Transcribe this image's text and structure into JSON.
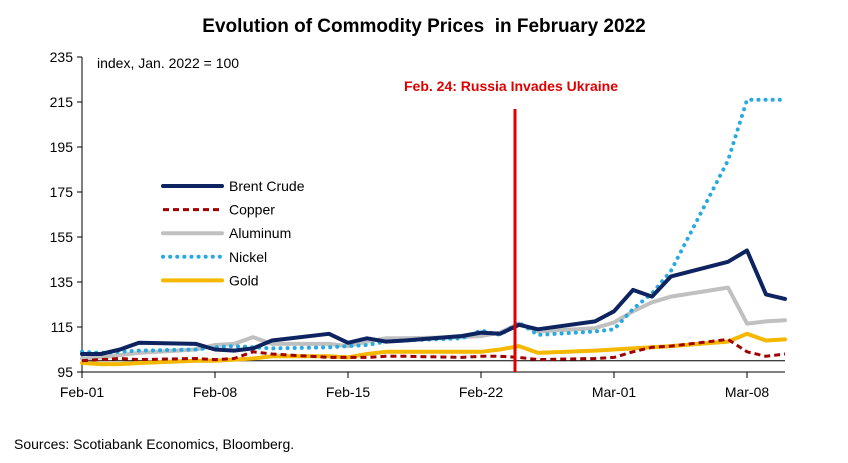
{
  "chart_data": {
    "type": "line",
    "title": "Evolution of Commodity Prices  in February 2022",
    "units_label": "index, Jan. 2022 = 100",
    "ylim": [
      95,
      235
    ],
    "y_ticks": [
      95,
      115,
      135,
      155,
      175,
      195,
      215,
      235
    ],
    "x_range": [
      "2022-02-01",
      "2022-03-10"
    ],
    "x_ticks": [
      {
        "date": "2022-02-01",
        "label": "Feb-01"
      },
      {
        "date": "2022-02-08",
        "label": "Feb-08"
      },
      {
        "date": "2022-02-15",
        "label": "Feb-15"
      },
      {
        "date": "2022-02-22",
        "label": "Feb-22"
      },
      {
        "date": "2022-03-01",
        "label": "Mar-01"
      },
      {
        "date": "2022-03-08",
        "label": "Mar-08"
      }
    ],
    "reference_line_y": 100,
    "event": {
      "date": "2022-02-24",
      "label": "Feb. 24: Russia Invades Ukraine",
      "color": "#e00000"
    },
    "legend_position": "left-middle",
    "grid": false,
    "series": [
      {
        "name": "Brent Crude",
        "color": "#0d2460",
        "style": "solid",
        "points": [
          [
            "2022-02-01",
            103
          ],
          [
            "2022-02-02",
            103
          ],
          [
            "2022-02-03",
            105
          ],
          [
            "2022-02-04",
            108
          ],
          [
            "2022-02-07",
            107.5
          ],
          [
            "2022-02-08",
            105
          ],
          [
            "2022-02-09",
            104.5
          ],
          [
            "2022-02-10",
            105.5
          ],
          [
            "2022-02-11",
            109
          ],
          [
            "2022-02-14",
            112
          ],
          [
            "2022-02-15",
            108
          ],
          [
            "2022-02-16",
            110
          ],
          [
            "2022-02-17",
            108.5
          ],
          [
            "2022-02-18",
            109
          ],
          [
            "2022-02-21",
            111
          ],
          [
            "2022-02-22",
            112.5
          ],
          [
            "2022-02-23",
            112
          ],
          [
            "2022-02-24",
            116
          ],
          [
            "2022-02-25",
            114
          ],
          [
            "2022-02-28",
            117.5
          ],
          [
            "2022-03-01",
            122
          ],
          [
            "2022-03-02",
            131.5
          ],
          [
            "2022-03-03",
            128.5
          ],
          [
            "2022-03-04",
            137.5
          ],
          [
            "2022-03-07",
            144
          ],
          [
            "2022-03-08",
            149
          ],
          [
            "2022-03-09",
            129.5
          ],
          [
            "2022-03-10",
            127.5
          ]
        ]
      },
      {
        "name": "Copper",
        "color": "#a00000",
        "style": "dashed",
        "points": [
          [
            "2022-02-01",
            100
          ],
          [
            "2022-02-02",
            100.5
          ],
          [
            "2022-02-03",
            101
          ],
          [
            "2022-02-04",
            100.5
          ],
          [
            "2022-02-07",
            101
          ],
          [
            "2022-02-08",
            100.5
          ],
          [
            "2022-02-09",
            101
          ],
          [
            "2022-02-10",
            104
          ],
          [
            "2022-02-11",
            103
          ],
          [
            "2022-02-14",
            101.5
          ],
          [
            "2022-02-15",
            101.5
          ],
          [
            "2022-02-16",
            101.5
          ],
          [
            "2022-02-17",
            102
          ],
          [
            "2022-02-18",
            102
          ],
          [
            "2022-02-21",
            101.5
          ],
          [
            "2022-02-22",
            102
          ],
          [
            "2022-02-23",
            102
          ],
          [
            "2022-02-24",
            101.5
          ],
          [
            "2022-02-25",
            100.5
          ],
          [
            "2022-02-28",
            101
          ],
          [
            "2022-03-01",
            101.5
          ],
          [
            "2022-03-02",
            104
          ],
          [
            "2022-03-03",
            106
          ],
          [
            "2022-03-04",
            106.5
          ],
          [
            "2022-03-07",
            109.5
          ],
          [
            "2022-03-08",
            104
          ],
          [
            "2022-03-09",
            102
          ],
          [
            "2022-03-10",
            103
          ]
        ]
      },
      {
        "name": "Aluminum",
        "color": "#c0c0c0",
        "style": "solid",
        "points": [
          [
            "2022-02-01",
            101
          ],
          [
            "2022-02-02",
            101.5
          ],
          [
            "2022-02-03",
            102.5
          ],
          [
            "2022-02-04",
            103.5
          ],
          [
            "2022-02-07",
            105
          ],
          [
            "2022-02-08",
            107
          ],
          [
            "2022-02-09",
            107.5
          ],
          [
            "2022-02-10",
            110.5
          ],
          [
            "2022-02-11",
            107.5
          ],
          [
            "2022-02-14",
            107.5
          ],
          [
            "2022-02-15",
            106.5
          ],
          [
            "2022-02-16",
            108.5
          ],
          [
            "2022-02-17",
            110
          ],
          [
            "2022-02-18",
            110
          ],
          [
            "2022-02-21",
            110.5
          ],
          [
            "2022-02-22",
            111
          ],
          [
            "2022-02-23",
            112.5
          ],
          [
            "2022-02-24",
            116.5
          ],
          [
            "2022-02-25",
            113
          ],
          [
            "2022-02-28",
            114.5
          ],
          [
            "2022-03-01",
            117
          ],
          [
            "2022-03-02",
            122
          ],
          [
            "2022-03-03",
            126
          ],
          [
            "2022-03-04",
            128.5
          ],
          [
            "2022-03-07",
            132.5
          ],
          [
            "2022-03-08",
            116.5
          ],
          [
            "2022-03-09",
            117.5
          ],
          [
            "2022-03-10",
            118
          ]
        ]
      },
      {
        "name": "Nickel",
        "color": "#29a9e1",
        "style": "dotted",
        "points": [
          [
            "2022-02-01",
            104
          ],
          [
            "2022-02-02",
            103.5
          ],
          [
            "2022-02-03",
            104
          ],
          [
            "2022-02-04",
            104.5
          ],
          [
            "2022-02-07",
            105
          ],
          [
            "2022-02-08",
            106
          ],
          [
            "2022-02-09",
            106.5
          ],
          [
            "2022-02-10",
            106
          ],
          [
            "2022-02-11",
            105.5
          ],
          [
            "2022-02-14",
            106
          ],
          [
            "2022-02-15",
            106.5
          ],
          [
            "2022-02-16",
            107
          ],
          [
            "2022-02-17",
            108.5
          ],
          [
            "2022-02-18",
            109
          ],
          [
            "2022-02-21",
            110
          ],
          [
            "2022-02-22",
            113.5
          ],
          [
            "2022-02-23",
            111.5
          ],
          [
            "2022-02-24",
            117
          ],
          [
            "2022-02-25",
            111.5
          ],
          [
            "2022-02-28",
            113
          ],
          [
            "2022-03-01",
            114
          ],
          [
            "2022-03-02",
            123
          ],
          [
            "2022-03-03",
            130
          ],
          [
            "2022-03-04",
            140
          ],
          [
            "2022-03-07",
            189
          ],
          [
            "2022-03-08",
            216
          ],
          [
            "2022-03-09",
            216
          ],
          [
            "2022-03-10",
            216
          ]
        ]
      },
      {
        "name": "Gold",
        "color": "#f5b800",
        "style": "solid",
        "points": [
          [
            "2022-02-01",
            99
          ],
          [
            "2022-02-02",
            98.5
          ],
          [
            "2022-02-03",
            98.5
          ],
          [
            "2022-02-04",
            99
          ],
          [
            "2022-02-07",
            100
          ],
          [
            "2022-02-08",
            100
          ],
          [
            "2022-02-09",
            100.5
          ],
          [
            "2022-02-10",
            101
          ],
          [
            "2022-02-11",
            102
          ],
          [
            "2022-02-14",
            102
          ],
          [
            "2022-02-15",
            101.5
          ],
          [
            "2022-02-16",
            103
          ],
          [
            "2022-02-17",
            104
          ],
          [
            "2022-02-18",
            104
          ],
          [
            "2022-02-21",
            104
          ],
          [
            "2022-02-22",
            104
          ],
          [
            "2022-02-23",
            105
          ],
          [
            "2022-02-24",
            106.5
          ],
          [
            "2022-02-25",
            103.5
          ],
          [
            "2022-02-28",
            104.5
          ],
          [
            "2022-03-01",
            105
          ],
          [
            "2022-03-02",
            105.5
          ],
          [
            "2022-03-03",
            106
          ],
          [
            "2022-03-04",
            106.5
          ],
          [
            "2022-03-07",
            108.5
          ],
          [
            "2022-03-08",
            112
          ],
          [
            "2022-03-09",
            109
          ],
          [
            "2022-03-10",
            109.5
          ]
        ]
      }
    ]
  },
  "source_note": "Sources: Scotiabank Economics, Bloomberg."
}
